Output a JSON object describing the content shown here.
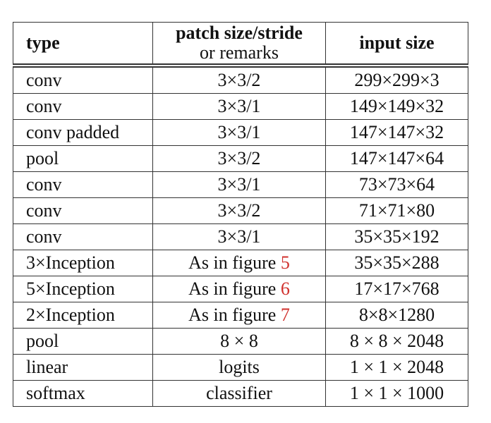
{
  "table": {
    "header": {
      "type": "type",
      "patch": "patch size/stride",
      "patch_note": "or remarks",
      "input": "input size"
    },
    "rows": [
      [
        "conv",
        "3×3/2",
        "299×299×3"
      ],
      [
        "conv",
        "3×3/1",
        "149×149×32"
      ],
      [
        "conv padded",
        "3×3/1",
        "147×147×32"
      ],
      [
        "pool",
        "3×3/2",
        "147×147×64"
      ],
      [
        "conv",
        "3×3/1",
        "73×73×64"
      ],
      [
        "conv",
        "3×3/2",
        "71×71×80"
      ],
      [
        "conv",
        "3×3/1",
        "35×35×192"
      ],
      [
        "3×Inception",
        {
          "text": "As in figure",
          "ref": "5"
        },
        "35×35×288"
      ],
      [
        "5×Inception",
        {
          "text": "As in figure",
          "ref": "6"
        },
        "17×17×768"
      ],
      [
        "2×Inception",
        {
          "text": "As in figure",
          "ref": "7"
        },
        "8×8×1280"
      ],
      [
        "pool",
        "8 × 8",
        "8 × 8 × 2048"
      ],
      [
        "linear",
        "logits",
        "1 × 1 × 2048"
      ],
      [
        "softmax",
        "classifier",
        "1 × 1 × 1000"
      ]
    ]
  }
}
